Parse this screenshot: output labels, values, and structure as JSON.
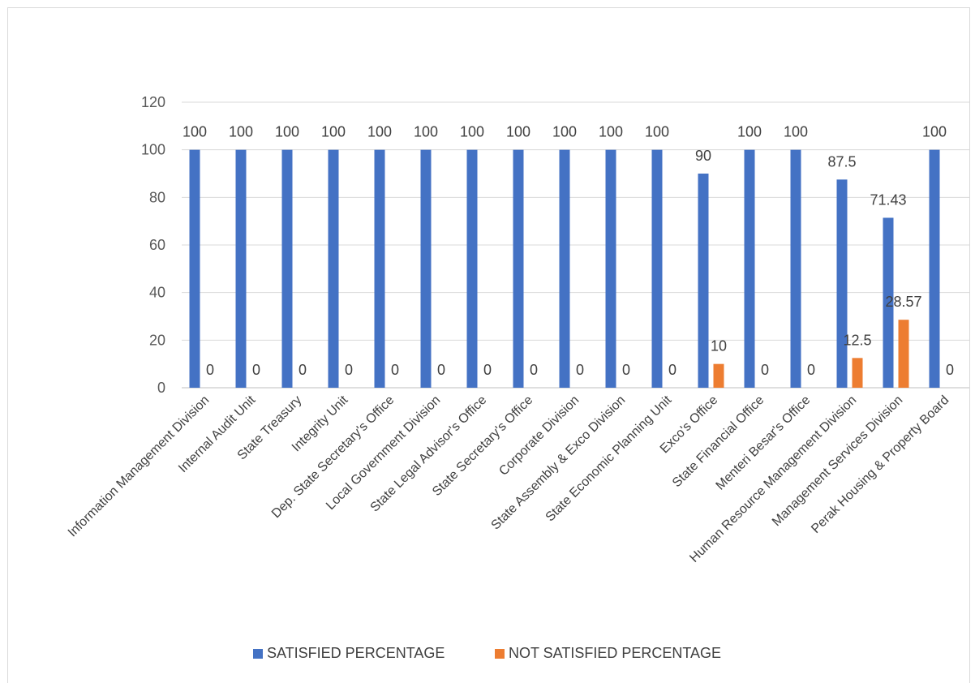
{
  "chart_data": {
    "type": "bar",
    "title": "",
    "xlabel": "",
    "ylabel": "",
    "ylim": [
      0,
      120
    ],
    "yticks": [
      0,
      20,
      40,
      60,
      80,
      100,
      120
    ],
    "grid": true,
    "legend_position": "bottom",
    "categories": [
      "Information Management Division",
      "Internal Audit Unit",
      "State Treasury",
      "Integrity Unit",
      "Dep. State Secretary's Office",
      "Local Government Division",
      "State Legal Advisor's Office",
      "State Secretary's Office",
      "Corporate Division",
      "State Assembly & Exco Division",
      "State Economic Planning Unit",
      "Exco's Office",
      "State Financial Office",
      "Menteri Besar's Office",
      "Human Resource Management Division",
      "Management Services Division",
      "Perak Housing & Property Board"
    ],
    "series": [
      {
        "name": "SATISFIED PERCENTAGE",
        "color": "#4472c4",
        "values": [
          100,
          100,
          100,
          100,
          100,
          100,
          100,
          100,
          100,
          100,
          100,
          90,
          100,
          100,
          87.5,
          71.43,
          100
        ],
        "labels": [
          "100",
          "100",
          "100",
          "100",
          "100",
          "100",
          "100",
          "100",
          "100",
          "100",
          "100",
          "90",
          "100",
          "100",
          "87.5",
          "71.43",
          "100"
        ]
      },
      {
        "name": "NOT SATISFIED PERCENTAGE",
        "color": "#ed7d31",
        "values": [
          0,
          0,
          0,
          0,
          0,
          0,
          0,
          0,
          0,
          0,
          0,
          10,
          0,
          0,
          12.5,
          28.57,
          0
        ],
        "labels": [
          "0",
          "0",
          "0",
          "0",
          "0",
          "0",
          "0",
          "0",
          "0",
          "0",
          "0",
          "10",
          "0",
          "0",
          "12.5",
          "28.57",
          "0"
        ]
      }
    ]
  }
}
